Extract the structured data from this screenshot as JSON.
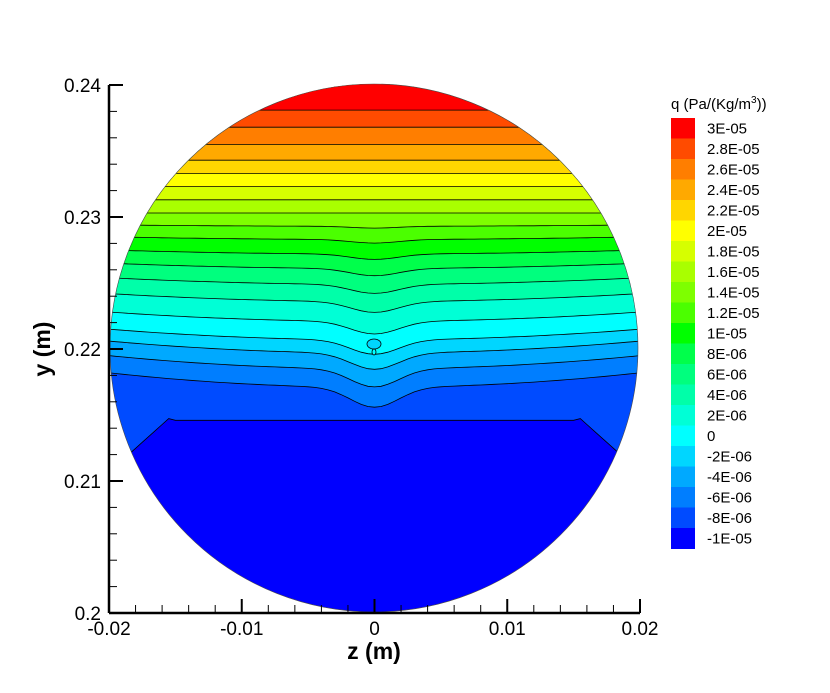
{
  "chart_data": {
    "type": "heatmap",
    "subtype": "filled-contour",
    "domain_shape": "circle",
    "xlabel": "z  (m)",
    "ylabel": "y  (m)",
    "xlim": [
      -0.02,
      0.02
    ],
    "ylim": [
      0.2,
      0.24
    ],
    "x_ticks": [
      -0.02,
      -0.01,
      0,
      0.01,
      0.02
    ],
    "x_tick_labels": [
      "-0.02",
      "-0.01",
      "0",
      "0.01",
      "0.02"
    ],
    "y_ticks": [
      0.2,
      0.21,
      0.22,
      0.23,
      0.24
    ],
    "y_tick_labels": [
      "0.2",
      "0.21",
      "0.22",
      "0.23",
      "0.24"
    ],
    "circle": {
      "center": [
        0,
        0.22
      ],
      "radius": 0.02
    },
    "colorbar": {
      "title_parts": [
        "q  (Pa/(Kg/m",
        "3",
        "))"
      ],
      "levels": [
        3e-05,
        2.8e-05,
        2.6e-05,
        2.4e-05,
        2.2e-05,
        2e-05,
        1.8e-05,
        1.6e-05,
        1.4e-05,
        1.2e-05,
        1e-05,
        8e-06,
        6e-06,
        4e-06,
        2e-06,
        0,
        -2e-06,
        -4e-06,
        -6e-06,
        -8e-06,
        -1e-05
      ],
      "labels": [
        "3E-05",
        "2.8E-05",
        "2.6E-05",
        "2.4E-05",
        "2.2E-05",
        "2E-05",
        "1.8E-05",
        "1.6E-05",
        "1.4E-05",
        "1.2E-05",
        "1E-05",
        "8E-06",
        "6E-06",
        "4E-06",
        "2E-06",
        "0",
        "-2E-06",
        "-4E-06",
        "-6E-06",
        "-8E-06",
        "-1E-05"
      ],
      "colors": [
        "#ff0000",
        "#ff4b00",
        "#ff7e00",
        "#ffa900",
        "#ffd600",
        "#ffff00",
        "#d6ff00",
        "#a9ff00",
        "#7eff00",
        "#4bff00",
        "#00ff00",
        "#00ff4b",
        "#00ff7e",
        "#00ffa9",
        "#00ffd6",
        "#00ffff",
        "#00d6ff",
        "#00a9ff",
        "#007eff",
        "#004bff",
        "#0000ff"
      ]
    },
    "field": {
      "description_free": true,
      "regions": [
        {
          "y_min": 0.2,
          "y_max": 0.2148,
          "value": -1e-05
        },
        {
          "y_min": 0.2148,
          "y_max": 0.2171,
          "value": -8e-06
        },
        {
          "y_min": 0.2171,
          "y_max": 0.2185,
          "value": -6e-06
        },
        {
          "y_min": 0.2185,
          "y_max": 0.2197,
          "value": -4e-06
        },
        {
          "y_min": 0.2197,
          "y_max": 0.2207,
          "value": -2e-06
        },
        {
          "y_min": 0.2207,
          "y_max": 0.2221,
          "value": 0
        },
        {
          "y_min": 0.2221,
          "y_max": 0.2236,
          "value": 2e-06
        },
        {
          "y_min": 0.2236,
          "y_max": 0.2249,
          "value": 4e-06
        },
        {
          "y_min": 0.2249,
          "y_max": 0.2261,
          "value": 6e-06
        },
        {
          "y_min": 0.2261,
          "y_max": 0.2272,
          "value": 8e-06
        },
        {
          "y_min": 0.2272,
          "y_max": 0.2283,
          "value": 1e-05
        },
        {
          "y_min": 0.2283,
          "y_max": 0.2293,
          "value": 1.2e-05
        },
        {
          "y_min": 0.2293,
          "y_max": 0.2303,
          "value": 1.4e-05
        },
        {
          "y_min": 0.2303,
          "y_max": 0.2313,
          "value": 1.6e-05
        },
        {
          "y_min": 0.2313,
          "y_max": 0.2323,
          "value": 1.8e-05
        },
        {
          "y_min": 0.2323,
          "y_max": 0.2333,
          "value": 2e-05
        },
        {
          "y_min": 0.2333,
          "y_max": 0.2343,
          "value": 2.2e-05
        },
        {
          "y_min": 0.2343,
          "y_max": 0.2355,
          "value": 2.4e-05
        },
        {
          "y_min": 0.2355,
          "y_max": 0.2368,
          "value": 2.6e-05
        },
        {
          "y_min": 0.2368,
          "y_max": 0.2381,
          "value": 2.8e-05
        },
        {
          "y_min": 0.2381,
          "y_max": 0.24,
          "value": 3e-05
        }
      ]
    },
    "grid": false,
    "legend_position": "right"
  }
}
